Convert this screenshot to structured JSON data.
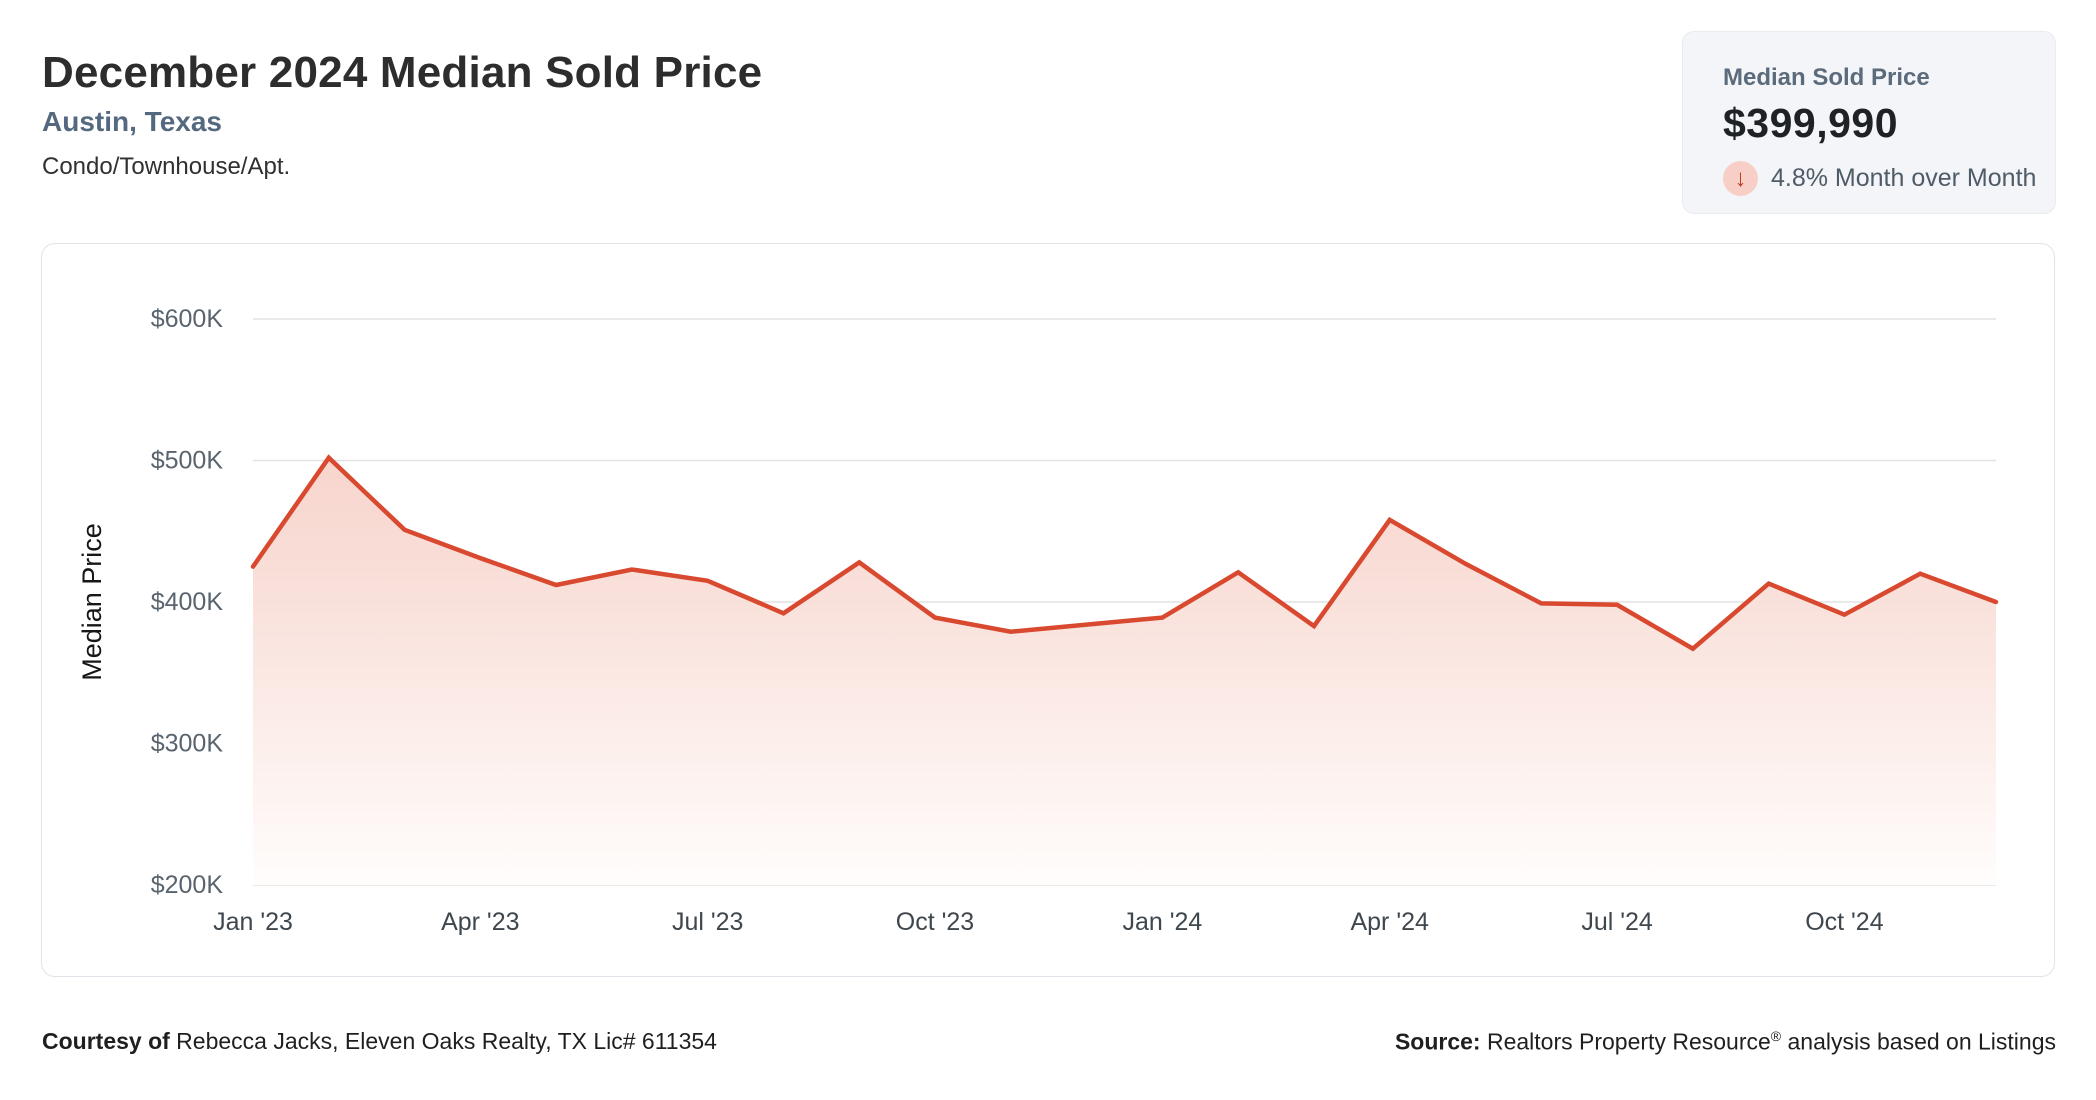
{
  "header": {
    "title": "December 2024 Median Sold Price",
    "location": "Austin, Texas",
    "property_type": "Condo/Townhouse/Apt."
  },
  "stat_card": {
    "label": "Median Sold Price",
    "value": "$399,990",
    "change_text": "4.8% Month over Month",
    "change_direction": "down",
    "arrow_icon": "↓",
    "arrow_color": "#c23a20",
    "arrow_bg_color": "#f8cfc7",
    "card_bg_color": "#f3f5f8"
  },
  "footer": {
    "courtesy_label": "Courtesy of",
    "courtesy_text": " Rebecca Jacks, Eleven Oaks Realty, TX Lic# 611354",
    "source_label": "Source:",
    "source_text_before_reg": " Realtors Property Resource",
    "source_reg_mark": "®",
    "source_text_after_reg": " analysis based on Listings"
  },
  "chart_data": {
    "type": "area",
    "title": "",
    "xlabel": "",
    "ylabel": "Median Price",
    "categories": [
      "Jan '23",
      "Feb '23",
      "Mar '23",
      "Apr '23",
      "May '23",
      "Jun '23",
      "Jul '23",
      "Aug '23",
      "Sep '23",
      "Oct '23",
      "Nov '23",
      "Dec '23",
      "Jan '24",
      "Feb '24",
      "Mar '24",
      "Apr '24",
      "May '24",
      "Jun '24",
      "Jul '24",
      "Aug '24",
      "Sep '24",
      "Oct '24",
      "Nov '24",
      "Dec '24"
    ],
    "values_usd_thousands": [
      425,
      502,
      451,
      431,
      412,
      423,
      415,
      392,
      428,
      389,
      379,
      384,
      389,
      421,
      383,
      458,
      427,
      399,
      398,
      367,
      413,
      391,
      420,
      400
    ],
    "last_point_exact_usd": 399990,
    "ylim": [
      200,
      600
    ],
    "y_ticks": [
      {
        "value": 600,
        "label": "$600K"
      },
      {
        "value": 500,
        "label": "$500K"
      },
      {
        "value": 400,
        "label": "$400K"
      },
      {
        "value": 300,
        "label": "$300K"
      },
      {
        "value": 200,
        "label": "$200K"
      }
    ],
    "x_ticks": [
      {
        "index": 0,
        "label": "Jan '23"
      },
      {
        "index": 3,
        "label": "Apr '23"
      },
      {
        "index": 6,
        "label": "Jul '23"
      },
      {
        "index": 9,
        "label": "Oct '23"
      },
      {
        "index": 12,
        "label": "Jan '24"
      },
      {
        "index": 15,
        "label": "Apr '24"
      },
      {
        "index": 18,
        "label": "Jul '24"
      },
      {
        "index": 21,
        "label": "Oct '24"
      }
    ],
    "grid": "horizontal",
    "legend": "none",
    "colors": {
      "line": "#d8492f",
      "fill_top": "#f6d0c7",
      "fill_bottom": "#fffdfc",
      "gridline": "#e2e2e2",
      "y_tick_text": "#5a646e",
      "x_tick_text": "#3f474e",
      "ylabel_text": "#161616"
    }
  }
}
